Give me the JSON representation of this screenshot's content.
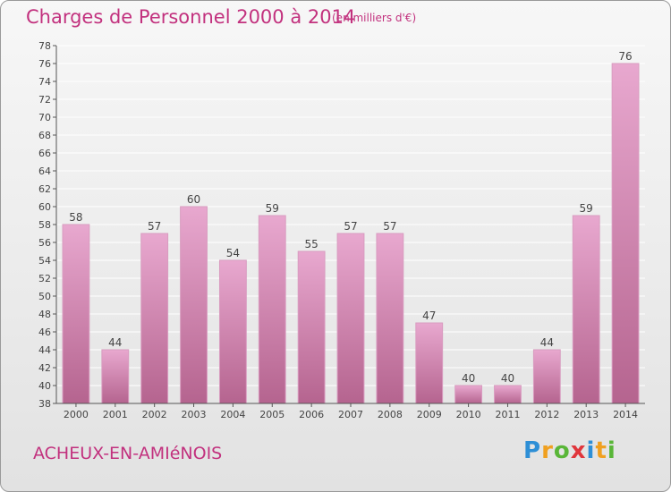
{
  "header": {
    "title": "Charges de Personnel 2000 à 2014",
    "subtitle": "(en milliers d'€)"
  },
  "footer": {
    "place": "ACHEUX-EN-AMIéNOIS",
    "brand": "Proxiti",
    "brand_letters": [
      {
        "ch": "P",
        "color": "#2e8fd6"
      },
      {
        "ch": "r",
        "color": "#f0a020"
      },
      {
        "ch": "o",
        "color": "#59b638"
      },
      {
        "ch": "x",
        "color": "#e0363c"
      },
      {
        "ch": "i",
        "color": "#2e8fd6"
      },
      {
        "ch": "t",
        "color": "#f0a020"
      },
      {
        "ch": "i",
        "color": "#59b638"
      }
    ]
  },
  "chart_data": {
    "type": "bar",
    "title": "Charges de Personnel 2000 à 2014",
    "subtitle": "(en milliers d'€)",
    "categories": [
      "2000",
      "2001",
      "2002",
      "2003",
      "2004",
      "2005",
      "2006",
      "2007",
      "2008",
      "2009",
      "2010",
      "2011",
      "2012",
      "2013",
      "2014"
    ],
    "values": [
      58,
      44,
      57,
      60,
      54,
      59,
      55,
      57,
      57,
      47,
      40,
      40,
      44,
      59,
      76
    ],
    "ylim": [
      38,
      78
    ],
    "yticks": [
      38,
      40,
      42,
      44,
      46,
      48,
      50,
      52,
      54,
      56,
      58,
      60,
      62,
      64,
      66,
      68,
      70,
      72,
      74,
      76,
      78
    ],
    "grid": true,
    "colors": {
      "bar_top": "#e8a8cf",
      "bar_bottom": "#b5648f",
      "text": "#c2317e",
      "axis": "#555555"
    }
  }
}
